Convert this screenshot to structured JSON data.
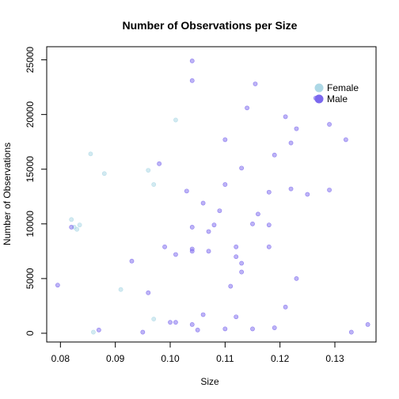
{
  "chart_data": {
    "type": "scatter",
    "title": "Number of Observations per Size",
    "xlabel": "Size",
    "ylabel": "Number of Observations",
    "xlim": [
      0.0775,
      0.1375
    ],
    "ylim": [
      -800,
      26200
    ],
    "xticks": [
      0.08,
      0.09,
      0.1,
      0.11,
      0.12,
      0.13
    ],
    "xtick_labels": [
      "0.08",
      "0.09",
      "0.10",
      "0.11",
      "0.12",
      "0.13"
    ],
    "yticks": [
      0,
      5000,
      10000,
      15000,
      20000,
      25000
    ],
    "ytick_labels": [
      "0",
      "5000",
      "10000",
      "15000",
      "20000",
      "25000"
    ],
    "grid": false,
    "legend_position": "top-right",
    "series": [
      {
        "name": "Female",
        "color": "#ADD8E6",
        "points": [
          [
            0.082,
            10400
          ],
          [
            0.0825,
            9700
          ],
          [
            0.083,
            9500
          ],
          [
            0.0835,
            9900
          ],
          [
            0.0855,
            16400
          ],
          [
            0.086,
            100
          ],
          [
            0.088,
            14600
          ],
          [
            0.091,
            4000
          ],
          [
            0.096,
            14900
          ],
          [
            0.097,
            13600
          ],
          [
            0.097,
            1300
          ],
          [
            0.101,
            19500
          ]
        ]
      },
      {
        "name": "Male",
        "color": "#7B68EE",
        "points": [
          [
            0.0795,
            4400
          ],
          [
            0.082,
            9700
          ],
          [
            0.087,
            300
          ],
          [
            0.093,
            6600
          ],
          [
            0.095,
            100
          ],
          [
            0.096,
            3700
          ],
          [
            0.098,
            15500
          ],
          [
            0.099,
            7900
          ],
          [
            0.1,
            1000
          ],
          [
            0.101,
            7200
          ],
          [
            0.101,
            1000
          ],
          [
            0.103,
            13000
          ],
          [
            0.104,
            24900
          ],
          [
            0.104,
            23100
          ],
          [
            0.104,
            9700
          ],
          [
            0.104,
            7700
          ],
          [
            0.104,
            7500
          ],
          [
            0.104,
            800
          ],
          [
            0.105,
            300
          ],
          [
            0.106,
            11900
          ],
          [
            0.106,
            1700
          ],
          [
            0.107,
            9300
          ],
          [
            0.107,
            7500
          ],
          [
            0.108,
            9900
          ],
          [
            0.109,
            11200
          ],
          [
            0.11,
            17700
          ],
          [
            0.11,
            13600
          ],
          [
            0.11,
            400
          ],
          [
            0.111,
            4300
          ],
          [
            0.112,
            7900
          ],
          [
            0.112,
            7000
          ],
          [
            0.112,
            1500
          ],
          [
            0.113,
            6400
          ],
          [
            0.113,
            5600
          ],
          [
            0.113,
            15100
          ],
          [
            0.114,
            20600
          ],
          [
            0.115,
            10000
          ],
          [
            0.115,
            400
          ],
          [
            0.1155,
            22800
          ],
          [
            0.116,
            10900
          ],
          [
            0.118,
            12900
          ],
          [
            0.118,
            9900
          ],
          [
            0.118,
            7900
          ],
          [
            0.119,
            16300
          ],
          [
            0.119,
            500
          ],
          [
            0.121,
            19800
          ],
          [
            0.121,
            2400
          ],
          [
            0.122,
            17400
          ],
          [
            0.122,
            13200
          ],
          [
            0.123,
            18700
          ],
          [
            0.123,
            5000
          ],
          [
            0.125,
            12700
          ],
          [
            0.1265,
            21500
          ],
          [
            0.129,
            19100
          ],
          [
            0.129,
            13100
          ],
          [
            0.132,
            17700
          ],
          [
            0.133,
            100
          ],
          [
            0.136,
            800
          ]
        ]
      }
    ]
  }
}
